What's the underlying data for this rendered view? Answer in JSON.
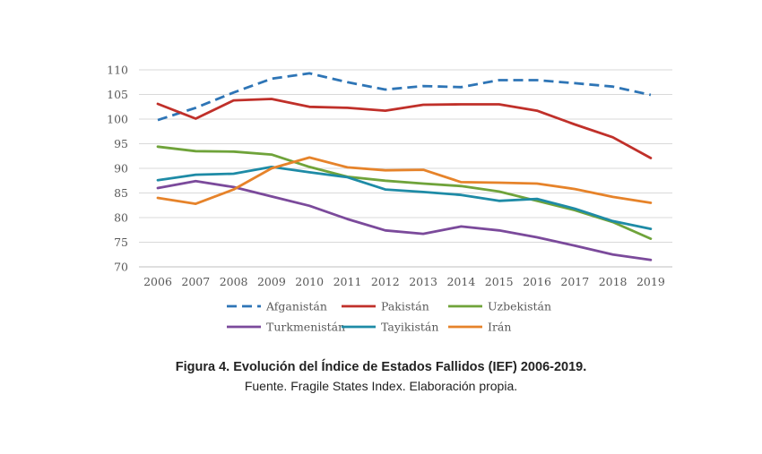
{
  "chart_data": {
    "type": "line",
    "x": [
      2006,
      2007,
      2008,
      2009,
      2010,
      2011,
      2012,
      2013,
      2014,
      2015,
      2016,
      2017,
      2018,
      2019
    ],
    "x_tick_labels": [
      "2006",
      "2007",
      "2008",
      "2009",
      "2010",
      "2011",
      "2012",
      "2013",
      "2014",
      "2015",
      "2016",
      "2017",
      "2018",
      "2019"
    ],
    "y_ticks": [
      70,
      75,
      80,
      85,
      90,
      95,
      100,
      105,
      110
    ],
    "ylim": [
      70,
      110
    ],
    "grid": true,
    "legend_position": "bottom",
    "series": [
      {
        "name": "Afganistán",
        "color": "#2E75B6",
        "dashed": true,
        "values": [
          99.8,
          102.3,
          105.4,
          108.2,
          109.3,
          107.5,
          106.0,
          106.7,
          106.5,
          107.9,
          107.9,
          107.3,
          106.6,
          104.9
        ]
      },
      {
        "name": "Pakistán",
        "color": "#C0302A",
        "dashed": false,
        "values": [
          103.1,
          100.1,
          103.8,
          104.1,
          102.5,
          102.3,
          101.7,
          102.9,
          103.0,
          103.0,
          101.7,
          98.9,
          96.3,
          92.1
        ]
      },
      {
        "name": "Uzbekistán",
        "color": "#6FA33A",
        "dashed": false,
        "values": [
          94.4,
          93.5,
          93.4,
          92.8,
          90.3,
          88.3,
          87.5,
          86.9,
          86.4,
          85.3,
          83.4,
          81.5,
          79.1,
          75.7
        ]
      },
      {
        "name": "Turkmenistán",
        "color": "#7B4A9B",
        "dashed": false,
        "values": [
          86.0,
          87.4,
          86.2,
          84.3,
          82.4,
          79.7,
          77.4,
          76.7,
          78.2,
          77.4,
          76.0,
          74.3,
          72.5,
          71.4
        ]
      },
      {
        "name": "Tayikistán",
        "color": "#1E8BA6",
        "dashed": false,
        "values": [
          87.6,
          88.7,
          88.9,
          90.3,
          89.2,
          88.2,
          85.7,
          85.2,
          84.6,
          83.4,
          83.8,
          81.8,
          79.3,
          77.7
        ]
      },
      {
        "name": "Irán",
        "color": "#E6832A",
        "dashed": false,
        "values": [
          84.0,
          82.8,
          85.7,
          90.0,
          92.2,
          90.2,
          89.6,
          89.7,
          87.2,
          87.1,
          86.9,
          85.8,
          84.2,
          83.0
        ]
      }
    ]
  },
  "caption": {
    "title": "Figura 4. Evolución del Índice de Estados Fallidos (IEF) 2006-2019.",
    "source": "Fuente. Fragile States Index. Elaboración propia."
  }
}
